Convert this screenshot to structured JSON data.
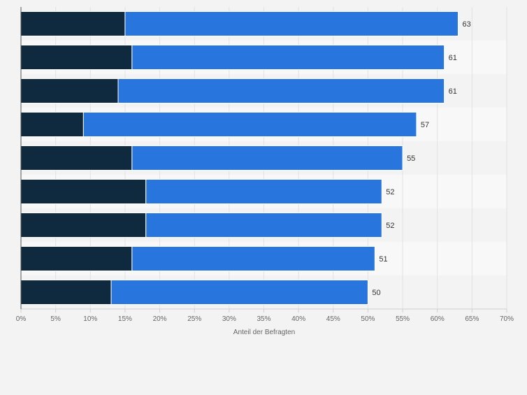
{
  "chart_data": {
    "type": "bar",
    "orientation": "horizontal",
    "stacked": true,
    "categories": [
      "",
      "",
      "",
      "",
      "",
      "",
      "",
      "",
      ""
    ],
    "series": [
      {
        "values": [
          15,
          16,
          14,
          9,
          16,
          18,
          18,
          16,
          13
        ],
        "color": "#0f2a3f"
      },
      {
        "values": [
          48,
          45,
          47,
          48,
          39,
          34,
          34,
          35,
          37
        ],
        "color": "#2876dd"
      }
    ],
    "totals": [
      63,
      61,
      61,
      57,
      55,
      52,
      52,
      51,
      50
    ],
    "total_labels": [
      "63",
      "61",
      "61",
      "57",
      "55",
      "52",
      "52",
      "51",
      "50"
    ],
    "xlabel": "Anteil der Befragten",
    "xlim": [
      0,
      70
    ],
    "xticks": [
      "0%",
      "5%",
      "10%",
      "15%",
      "20%",
      "25%",
      "30%",
      "35%",
      "40%",
      "45%",
      "50%",
      "55%",
      "60%",
      "65%",
      "70%"
    ],
    "grid": true,
    "legend": "none"
  }
}
